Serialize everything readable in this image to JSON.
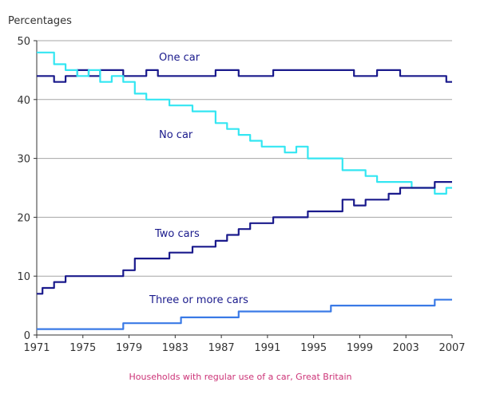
{
  "chart_data": {
    "type": "line",
    "title": "",
    "ylabel": "Percentages",
    "xlabel": "",
    "caption": "Households with regular use of a car, Great Britain",
    "xlim": [
      1971,
      2007
    ],
    "ylim": [
      0,
      50
    ],
    "x_ticks": [
      1971,
      1975,
      1979,
      1983,
      1987,
      1991,
      1995,
      1999,
      2003,
      2007
    ],
    "y_ticks": [
      0,
      10,
      20,
      30,
      40,
      50
    ],
    "grid": "horizontal",
    "legend": "inline labels",
    "x": [
      1971,
      1972,
      1973,
      1974,
      1975,
      1976,
      1977,
      1978,
      1979,
      1980,
      1981,
      1982,
      1983,
      1984,
      1985,
      1986,
      1987,
      1988,
      1989,
      1990,
      1991,
      1992,
      1993,
      1994,
      1995,
      1996,
      1997,
      1998,
      1999,
      2000,
      2001,
      2002,
      2003,
      2004,
      2005,
      2006,
      2007
    ],
    "series": [
      {
        "name": "One car",
        "color": "#1a1a8c",
        "values": [
          44,
          44,
          43,
          44,
          45,
          44,
          45,
          45,
          44,
          44,
          45,
          44,
          44,
          44,
          44,
          44,
          45,
          45,
          44,
          44,
          44,
          45,
          45,
          45,
          45,
          45,
          45,
          45,
          44,
          44,
          45,
          45,
          44,
          44,
          44,
          44,
          43
        ]
      },
      {
        "name": "No car",
        "color": "#33e6f2",
        "values": [
          48,
          48,
          46,
          45,
          44,
          45,
          43,
          44,
          43,
          41,
          40,
          40,
          39,
          39,
          38,
          38,
          36,
          35,
          34,
          33,
          32,
          32,
          31,
          32,
          30,
          30,
          30,
          28,
          28,
          27,
          26,
          26,
          26,
          25,
          25,
          24,
          25
        ]
      },
      {
        "name": "Two cars",
        "color": "#1a1a8c",
        "values": [
          7,
          8,
          9,
          10,
          10,
          10,
          10,
          10,
          11,
          13,
          13,
          13,
          14,
          14,
          15,
          15,
          16,
          17,
          18,
          19,
          19,
          20,
          20,
          20,
          21,
          21,
          21,
          23,
          22,
          23,
          23,
          24,
          25,
          25,
          25,
          26,
          26
        ]
      },
      {
        "name": "Three or more cars",
        "color": "#3a7ae6",
        "values": [
          1,
          1,
          1,
          1,
          1,
          1,
          1,
          1,
          2,
          2,
          2,
          2,
          2,
          3,
          3,
          3,
          3,
          3,
          4,
          4,
          4,
          4,
          4,
          4,
          4,
          4,
          5,
          5,
          5,
          5,
          5,
          5,
          5,
          5,
          5,
          6,
          6
        ]
      }
    ]
  }
}
